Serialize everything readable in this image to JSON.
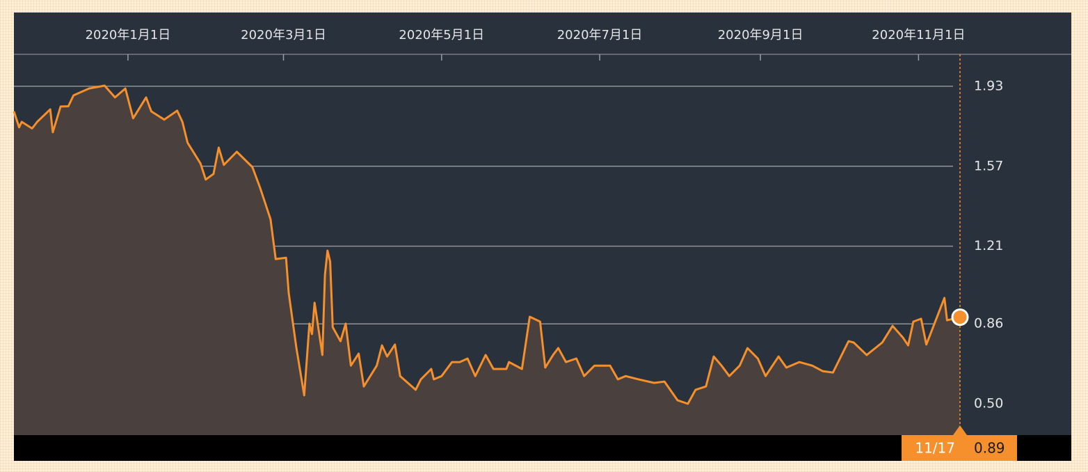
{
  "chart_data": {
    "type": "area",
    "x": [
      "2019-11-18",
      "2019-11-20",
      "2019-11-21",
      "2019-11-25",
      "2019-11-27",
      "2019-12-02",
      "2019-12-03",
      "2019-12-06",
      "2019-12-09",
      "2019-12-11",
      "2019-12-17",
      "2019-12-23",
      "2019-12-27",
      "2019-12-31",
      "2020-01-03",
      "2020-01-08",
      "2020-01-10",
      "2020-01-15",
      "2020-01-20",
      "2020-01-22",
      "2020-01-24",
      "2020-01-29",
      "2020-01-31",
      "2020-02-03",
      "2020-02-05",
      "2020-02-07",
      "2020-02-12",
      "2020-02-18",
      "2020-02-21",
      "2020-02-25",
      "2020-02-27",
      "2020-03-02",
      "2020-03-03",
      "2020-03-06",
      "2020-03-09",
      "2020-03-11",
      "2020-03-12",
      "2020-03-13",
      "2020-03-16",
      "2020-03-17",
      "2020-03-18",
      "2020-03-19",
      "2020-03-20",
      "2020-03-23",
      "2020-03-25",
      "2020-03-27",
      "2020-03-30",
      "2020-04-01",
      "2020-04-06",
      "2020-04-08",
      "2020-04-10",
      "2020-04-13",
      "2020-04-15",
      "2020-04-21",
      "2020-04-23",
      "2020-04-27",
      "2020-04-28",
      "2020-05-01",
      "2020-05-05",
      "2020-05-08",
      "2020-05-11",
      "2020-05-14",
      "2020-05-18",
      "2020-05-21",
      "2020-05-26",
      "2020-05-27",
      "2020-06-01",
      "2020-06-04",
      "2020-06-08",
      "2020-06-10",
      "2020-06-13",
      "2020-06-15",
      "2020-06-18",
      "2020-06-22",
      "2020-06-25",
      "2020-06-29",
      "2020-07-05",
      "2020-07-08",
      "2020-07-11",
      "2020-07-16",
      "2020-07-22",
      "2020-07-26",
      "2020-07-31",
      "2020-08-04",
      "2020-08-07",
      "2020-08-11",
      "2020-08-14",
      "2020-08-17",
      "2020-08-20",
      "2020-08-24",
      "2020-08-27",
      "2020-08-31",
      "2020-09-03",
      "2020-09-08",
      "2020-09-11",
      "2020-09-16",
      "2020-09-21",
      "2020-09-25",
      "2020-09-29",
      "2020-10-05",
      "2020-10-07",
      "2020-10-12",
      "2020-10-18",
      "2020-10-22",
      "2020-10-26",
      "2020-10-28",
      "2020-10-30",
      "2020-11-02",
      "2020-11-04",
      "2020-11-11",
      "2020-11-12",
      "2020-11-17"
    ],
    "series": [
      {
        "color": "#f5902c",
        "fill": "#4a403e",
        "values": [
          1.817,
          1.745,
          1.77,
          1.74,
          1.77,
          1.826,
          1.723,
          1.839,
          1.84,
          1.889,
          1.92,
          1.933,
          1.88,
          1.92,
          1.786,
          1.88,
          1.817,
          1.78,
          1.82,
          1.77,
          1.676,
          1.582,
          1.51,
          1.535,
          1.654,
          1.576,
          1.635,
          1.566,
          1.472,
          1.331,
          1.152,
          1.158,
          1.0,
          0.751,
          0.538,
          0.861,
          0.814,
          0.955,
          0.72,
          1.08,
          1.19,
          1.14,
          0.845,
          0.782,
          0.861,
          0.672,
          0.726,
          0.578,
          0.672,
          0.763,
          0.713,
          0.767,
          0.625,
          0.563,
          0.61,
          0.657,
          0.61,
          0.625,
          0.688,
          0.688,
          0.704,
          0.625,
          0.72,
          0.657,
          0.657,
          0.688,
          0.657,
          0.892,
          0.87,
          0.663,
          0.72,
          0.751,
          0.688,
          0.704,
          0.625,
          0.672,
          0.672,
          0.61,
          0.625,
          0.61,
          0.594,
          0.6,
          0.516,
          0.5,
          0.563,
          0.578,
          0.713,
          0.672,
          0.625,
          0.672,
          0.751,
          0.704,
          0.625,
          0.713,
          0.663,
          0.688,
          0.672,
          0.647,
          0.641,
          0.782,
          0.776,
          0.72,
          0.776,
          0.851,
          0.798,
          0.763,
          0.87,
          0.883,
          0.767,
          0.977,
          0.876,
          0.89
        ]
      }
    ],
    "xlim": [
      "2019-11-18",
      "2020-11-17"
    ],
    "xticks": [
      {
        "value": "2020-01-01",
        "label": "2020年1月1日"
      },
      {
        "value": "2020-03-01",
        "label": "2020年3月1日"
      },
      {
        "value": "2020-05-01",
        "label": "2020年5月1日"
      },
      {
        "value": "2020-07-01",
        "label": "2020年7月1日"
      },
      {
        "value": "2020-09-01",
        "label": "2020年9月1日"
      },
      {
        "value": "2020-11-01",
        "label": "2020年11月1日"
      }
    ],
    "ylim": [
      0.359,
      2.074
    ],
    "yticks": [
      {
        "value": 0.5,
        "label": "0.50"
      },
      0.86,
      1.21,
      1.57,
      1.93
    ],
    "grid": true,
    "tooltip_label": "11/17"
  }
}
